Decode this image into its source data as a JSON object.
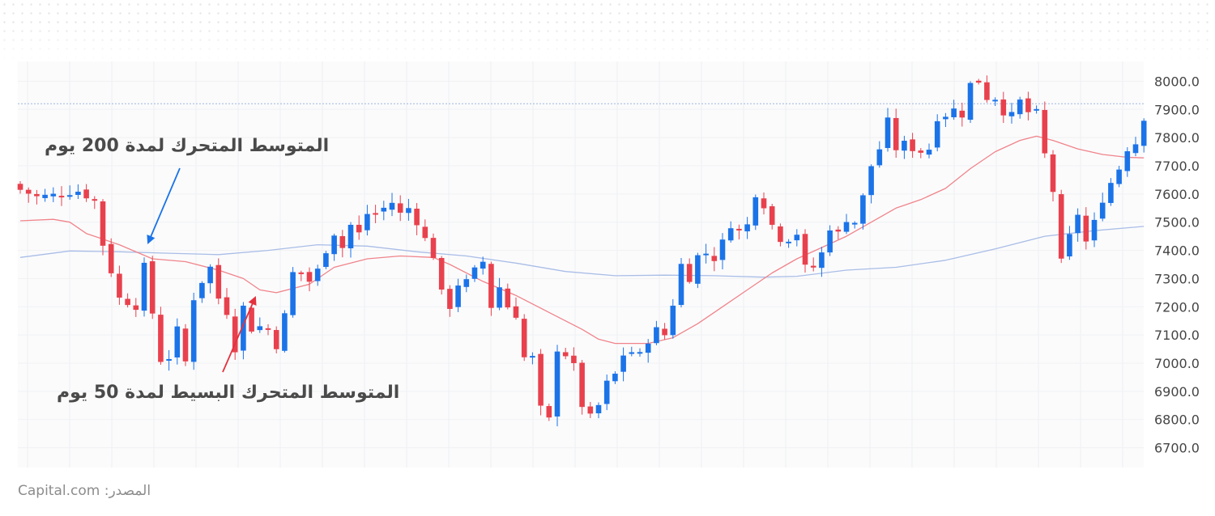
{
  "chart_data": {
    "type": "candlestick",
    "y_ticks": [
      8000.0,
      7900.0,
      7800.0,
      7700.0,
      7600.0,
      7500.0,
      7400.0,
      7300.0,
      7200.0,
      7100.0,
      7000.0,
      6900.0,
      6800.0,
      6700.0
    ],
    "y_tick_labels": [
      "8000.0",
      "7900.0",
      "7800.0",
      "7700.0",
      "7600.0",
      "7500.0",
      "7400.0",
      "7300.0",
      "7200.0",
      "7100.0",
      "7000.0",
      "6900.0",
      "6800.0",
      "6700.0"
    ],
    "ylim": [
      6630,
      8070
    ],
    "reference_line": 7920,
    "up_color": "#1b73e8",
    "down_color": "#e8414d",
    "sma50_color": "#f0848a",
    "sma200_color": "#a9bde6",
    "candle_close_path": [
      [
        0,
        7615
      ],
      [
        2,
        7590
      ],
      [
        5,
        7600
      ],
      [
        7,
        7610
      ],
      [
        9,
        7575
      ],
      [
        10,
        7420
      ],
      [
        12,
        7230
      ],
      [
        14,
        7200
      ],
      [
        15,
        7345
      ],
      [
        17,
        7010
      ],
      [
        18,
        7020
      ],
      [
        19,
        7120
      ],
      [
        20,
        7005
      ],
      [
        21,
        7230
      ],
      [
        22,
        7290
      ],
      [
        23,
        7340
      ],
      [
        24,
        7230
      ],
      [
        25,
        7180
      ],
      [
        26,
        7050
      ],
      [
        27,
        7200
      ],
      [
        28,
        7120
      ],
      [
        29,
        7130
      ],
      [
        30,
        7120
      ],
      [
        31,
        7060
      ],
      [
        32,
        7170
      ],
      [
        33,
        7320
      ],
      [
        34,
        7320
      ],
      [
        35,
        7290
      ],
      [
        36,
        7330
      ],
      [
        37,
        7400
      ],
      [
        38,
        7460
      ],
      [
        39,
        7410
      ],
      [
        40,
        7490
      ],
      [
        41,
        7460
      ],
      [
        42,
        7530
      ],
      [
        43,
        7530
      ],
      [
        44,
        7550
      ],
      [
        45,
        7570
      ],
      [
        46,
        7530
      ],
      [
        47,
        7550
      ],
      [
        48,
        7500
      ],
      [
        49,
        7440
      ],
      [
        50,
        7380
      ],
      [
        51,
        7250
      ],
      [
        52,
        7200
      ],
      [
        53,
        7280
      ],
      [
        54,
        7290
      ],
      [
        55,
        7330
      ],
      [
        56,
        7360
      ],
      [
        57,
        7200
      ],
      [
        58,
        7270
      ],
      [
        59,
        7200
      ],
      [
        60,
        7170
      ],
      [
        61,
        7020
      ],
      [
        62,
        7020
      ],
      [
        63,
        6840
      ],
      [
        64,
        6800
      ],
      [
        65,
        7050
      ],
      [
        66,
        7030
      ],
      [
        67,
        6990
      ],
      [
        68,
        6850
      ],
      [
        69,
        6810
      ],
      [
        70,
        6850
      ],
      [
        71,
        6930
      ],
      [
        72,
        6960
      ],
      [
        73,
        7030
      ],
      [
        74,
        7040
      ],
      [
        75,
        7030
      ],
      [
        76,
        7080
      ],
      [
        77,
        7120
      ],
      [
        78,
        7100
      ],
      [
        79,
        7210
      ],
      [
        80,
        7350
      ],
      [
        81,
        7300
      ],
      [
        82,
        7380
      ],
      [
        83,
        7390
      ],
      [
        84,
        7370
      ],
      [
        85,
        7430
      ],
      [
        86,
        7490
      ],
      [
        87,
        7470
      ],
      [
        88,
        7490
      ],
      [
        89,
        7600
      ],
      [
        90,
        7560
      ],
      [
        91,
        7490
      ],
      [
        92,
        7440
      ],
      [
        93,
        7440
      ],
      [
        94,
        7460
      ],
      [
        95,
        7340
      ],
      [
        96,
        7340
      ],
      [
        97,
        7390
      ],
      [
        98,
        7480
      ],
      [
        99,
        7460
      ],
      [
        100,
        7510
      ],
      [
        101,
        7500
      ],
      [
        102,
        7590
      ],
      [
        103,
        7700
      ],
      [
        104,
        7760
      ],
      [
        105,
        7860
      ],
      [
        106,
        7760
      ],
      [
        107,
        7780
      ],
      [
        108,
        7760
      ],
      [
        109,
        7750
      ],
      [
        110,
        7760
      ],
      [
        111,
        7870
      ],
      [
        112,
        7880
      ],
      [
        113,
        7900
      ],
      [
        114,
        7880
      ],
      [
        115,
        7990
      ],
      [
        116,
        8000
      ],
      [
        117,
        7940
      ],
      [
        118,
        7940
      ],
      [
        119,
        7890
      ],
      [
        120,
        7880
      ],
      [
        121,
        7930
      ],
      [
        122,
        7890
      ],
      [
        123,
        7890
      ],
      [
        124,
        7740
      ],
      [
        125,
        7610
      ],
      [
        126,
        7360
      ],
      [
        127,
        7450
      ],
      [
        128,
        7530
      ],
      [
        129,
        7430
      ],
      [
        130,
        7500
      ],
      [
        131,
        7580
      ],
      [
        132,
        7640
      ],
      [
        133,
        7690
      ],
      [
        134,
        7760
      ],
      [
        135,
        7780
      ],
      [
        136,
        7870
      ]
    ],
    "sma50": [
      [
        0,
        7505
      ],
      [
        4,
        7510
      ],
      [
        6,
        7500
      ],
      [
        8,
        7460
      ],
      [
        12,
        7420
      ],
      [
        16,
        7370
      ],
      [
        20,
        7360
      ],
      [
        24,
        7330
      ],
      [
        27,
        7300
      ],
      [
        29,
        7260
      ],
      [
        31,
        7250
      ],
      [
        35,
        7280
      ],
      [
        38,
        7340
      ],
      [
        42,
        7370
      ],
      [
        46,
        7380
      ],
      [
        50,
        7375
      ],
      [
        52,
        7350
      ],
      [
        56,
        7290
      ],
      [
        60,
        7240
      ],
      [
        64,
        7180
      ],
      [
        68,
        7120
      ],
      [
        70,
        7085
      ],
      [
        72,
        7070
      ],
      [
        76,
        7070
      ],
      [
        79,
        7090
      ],
      [
        82,
        7140
      ],
      [
        85,
        7200
      ],
      [
        88,
        7260
      ],
      [
        91,
        7320
      ],
      [
        94,
        7370
      ],
      [
        97,
        7410
      ],
      [
        100,
        7450
      ],
      [
        103,
        7500
      ],
      [
        106,
        7550
      ],
      [
        109,
        7580
      ],
      [
        112,
        7620
      ],
      [
        115,
        7690
      ],
      [
        118,
        7750
      ],
      [
        121,
        7790
      ],
      [
        123,
        7805
      ],
      [
        125,
        7790
      ],
      [
        128,
        7760
      ],
      [
        131,
        7740
      ],
      [
        134,
        7730
      ],
      [
        136,
        7728
      ]
    ],
    "sma200": [
      [
        0,
        7375
      ],
      [
        6,
        7398
      ],
      [
        12,
        7395
      ],
      [
        18,
        7390
      ],
      [
        24,
        7385
      ],
      [
        30,
        7400
      ],
      [
        36,
        7420
      ],
      [
        42,
        7415
      ],
      [
        48,
        7395
      ],
      [
        54,
        7380
      ],
      [
        60,
        7355
      ],
      [
        66,
        7325
      ],
      [
        72,
        7310
      ],
      [
        78,
        7312
      ],
      [
        84,
        7310
      ],
      [
        90,
        7305
      ],
      [
        94,
        7308
      ],
      [
        100,
        7330
      ],
      [
        106,
        7340
      ],
      [
        112,
        7365
      ],
      [
        118,
        7405
      ],
      [
        124,
        7450
      ],
      [
        130,
        7470
      ],
      [
        136,
        7485
      ]
    ]
  },
  "annotations": {
    "sma200_label": "المتوسط المتحرك لمدة 200 يوم",
    "sma50_label": "المتوسط المتحرك البسيط لمدة 50 يوم",
    "arrow200_color": "#1a73e8",
    "arrow50_color": "#e3323e"
  },
  "source_text": "المصدر: Capital.com"
}
